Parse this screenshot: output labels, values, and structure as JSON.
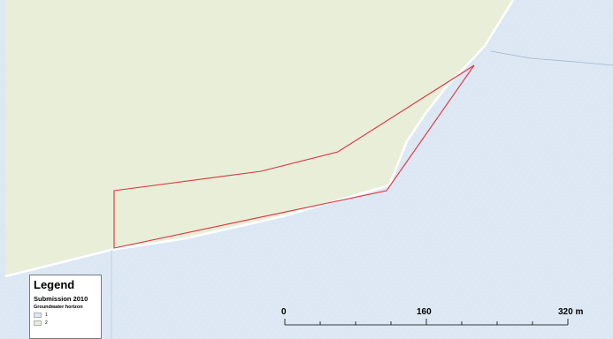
{
  "legend": {
    "title": "Legend",
    "subtitle": "Submission 2010",
    "heading": "Groundwater horizon",
    "items": [
      {
        "label": "1",
        "color": "#dde8f4"
      },
      {
        "label": "2",
        "color": "#e8eed8"
      }
    ]
  },
  "scale_bar": {
    "labels": [
      "0",
      "160",
      "320 m"
    ]
  },
  "colors": {
    "horizon_1_fill": "#dde8f4",
    "horizon_2_fill": "#e8eed8",
    "parcel_outline": "#e0323c"
  }
}
